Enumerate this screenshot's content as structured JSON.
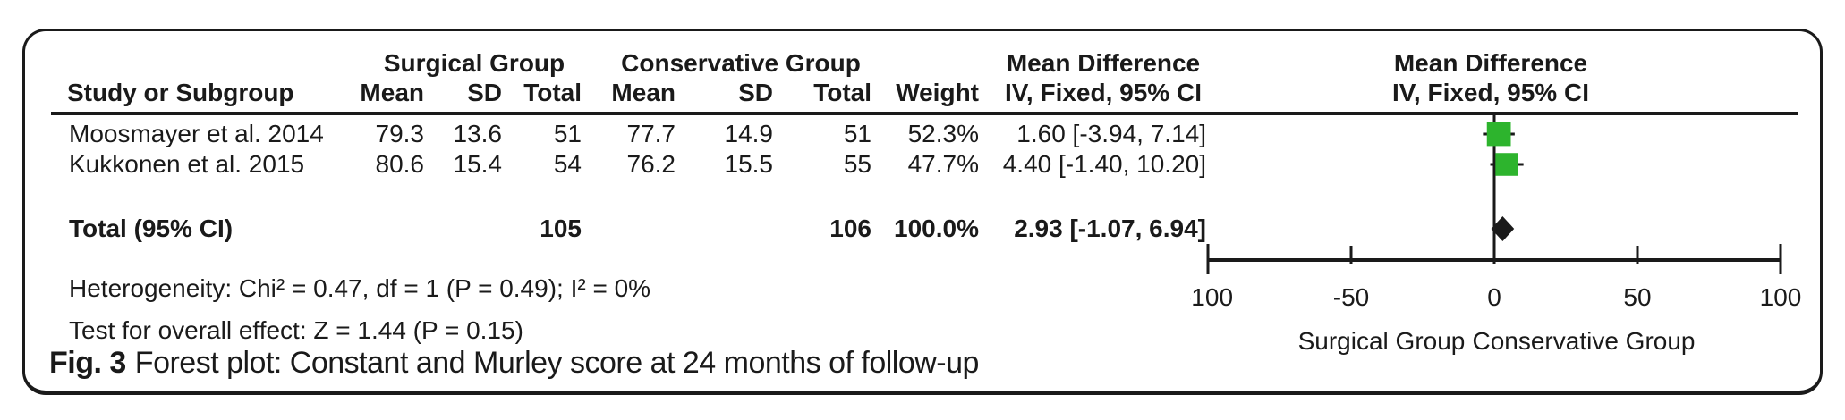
{
  "figure": {
    "caption_label": "Fig. 3",
    "caption_text": "Forest plot: Constant and Murley score at 24 months of follow-up"
  },
  "table": {
    "headers": {
      "study": "Study or Subgroup",
      "group1": "Surgical Group",
      "group2": "Conservative Group",
      "mean1": "Mean",
      "sd1": "SD",
      "total1": "Total",
      "mean2": "Mean",
      "sd2": "SD",
      "total2": "Total",
      "weight": "Weight",
      "effect_line1": "Mean Difference",
      "effect_line2": "IV, Fixed, 95% CI",
      "plot_line1": "Mean Difference",
      "plot_line2": "IV, Fixed, 95% CI"
    },
    "rows": [
      {
        "study": "Moosmayer et al. 2014",
        "mean1": "79.3",
        "sd1": "13.6",
        "total1": "51",
        "mean2": "77.7",
        "sd2": "14.9",
        "total2": "51",
        "weight": "52.3%",
        "ci": "1.60 [-3.94, 7.14]"
      },
      {
        "study": "Kukkonen et al. 2015",
        "mean1": "80.6",
        "sd1": "15.4",
        "total1": "54",
        "mean2": "76.2",
        "sd2": "15.5",
        "total2": "55",
        "weight": "47.7%",
        "ci": "4.40 [-1.40, 10.20]"
      }
    ],
    "total_row": {
      "label": "Total (95% CI)",
      "total1": "105",
      "total2": "106",
      "weight": "100.0%",
      "ci": "2.93 [-1.07, 6.94]"
    },
    "heterogeneity": "Heterogeneity: Chi² = 0.47, df = 1 (P = 0.49); I² = 0%",
    "overall_effect": "Test for overall effect: Z = 1.44 (P = 0.15)"
  },
  "chart_data": {
    "type": "scatter",
    "subtype": "forest-plot",
    "title": "Mean Difference",
    "effect_measure": "IV, Fixed, 95% CI",
    "studies": [
      {
        "name": "Moosmayer et al. 2014",
        "md": 1.6,
        "ci_low": -3.94,
        "ci_high": 7.14,
        "weight_pct": 52.3
      },
      {
        "name": "Kukkonen et al. 2015",
        "md": 4.4,
        "ci_low": -1.4,
        "ci_high": 10.2,
        "weight_pct": 47.7
      }
    ],
    "total": {
      "name": "Total (95% CI)",
      "md": 2.93,
      "ci_low": -1.07,
      "ci_high": 6.94,
      "weight_pct": 100.0
    },
    "xlim": [
      -100,
      100
    ],
    "ticks": [
      -100,
      -50,
      0,
      50,
      100
    ],
    "favours_left": "Surgical Group",
    "favours_right": "Conservative Group",
    "marker_color": "#2db42d",
    "diamond_color": "#1a1a1a",
    "axis_color": "#1a1a1a"
  }
}
